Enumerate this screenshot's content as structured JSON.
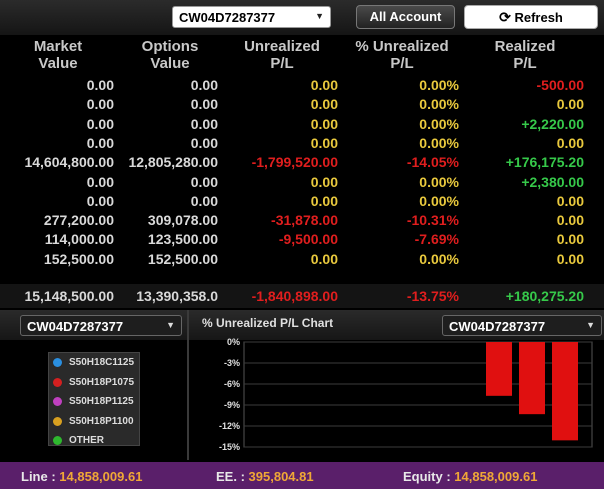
{
  "account_select": {
    "value": "CW04D7287377"
  },
  "buttons": {
    "all_account": "All Account",
    "refresh": "Refresh"
  },
  "columns": [
    {
      "line1": "Market",
      "line2": "Value"
    },
    {
      "line1": "Options",
      "line2": "Value"
    },
    {
      "line1": "Unrealized",
      "line2": "P/L"
    },
    {
      "line1": "% Unrealized",
      "line2": "P/L"
    },
    {
      "line1": "Realized",
      "line2": "P/L"
    }
  ],
  "rows": [
    {
      "market": "0.00",
      "options": "0.00",
      "unrealized": "0.00",
      "pct": "0.00%",
      "realized": "-500.00"
    },
    {
      "market": "0.00",
      "options": "0.00",
      "unrealized": "0.00",
      "pct": "0.00%",
      "realized": "0.00"
    },
    {
      "market": "0.00",
      "options": "0.00",
      "unrealized": "0.00",
      "pct": "0.00%",
      "realized": "+2,220.00"
    },
    {
      "market": "0.00",
      "options": "0.00",
      "unrealized": "0.00",
      "pct": "0.00%",
      "realized": "0.00"
    },
    {
      "market": "14,604,800.00",
      "options": "12,805,280.00",
      "unrealized": "-1,799,520.00",
      "pct": "-14.05%",
      "realized": "+176,175.20"
    },
    {
      "market": "0.00",
      "options": "0.00",
      "unrealized": "0.00",
      "pct": "0.00%",
      "realized": "+2,380.00"
    },
    {
      "market": "0.00",
      "options": "0.00",
      "unrealized": "0.00",
      "pct": "0.00%",
      "realized": "0.00"
    },
    {
      "market": "277,200.00",
      "options": "309,078.00",
      "unrealized": "-31,878.00",
      "pct": "-10.31%",
      "realized": "0.00"
    },
    {
      "market": "114,000.00",
      "options": "123,500.00",
      "unrealized": "-9,500.00",
      "pct": "-7.69%",
      "realized": "0.00"
    },
    {
      "market": "152,500.00",
      "options": "152,500.00",
      "unrealized": "0.00",
      "pct": "0.00%",
      "realized": "0.00"
    }
  ],
  "totals": {
    "market": "15,148,500.00",
    "options": "13,390,358.0",
    "unrealized": "-1,840,898.00",
    "pct": "-13.75%",
    "realized": "+180,275.20"
  },
  "lower_left_select": {
    "value": "CW04D7287377"
  },
  "chart_select": {
    "value": "CW04D7287377"
  },
  "chart_title": "% Unrealized P/L Chart",
  "legend": [
    {
      "label": "S50H18C1125",
      "color": "#2a8fe0"
    },
    {
      "label": "S50H18P1075",
      "color": "#d42020"
    },
    {
      "label": "S50H18P1125",
      "color": "#c040c0"
    },
    {
      "label": "S50H18P1100",
      "color": "#d8a020"
    },
    {
      "label": "OTHER",
      "color": "#2eb82e"
    }
  ],
  "chart_data": {
    "type": "bar",
    "y_ticks": [
      "0%",
      "-3%",
      "-6%",
      "-9%",
      "-12%",
      "-15%"
    ],
    "ylim": [
      -15,
      0
    ],
    "values": [
      -7.69,
      -10.31,
      -14.05
    ],
    "bar_color": "#e01010",
    "grid": true
  },
  "status": {
    "line_label": "Line :",
    "line_value": "14,858,009.61",
    "ee_label": "EE. :",
    "ee_value": "395,804.81",
    "equity_label": "Equity :",
    "equity_value": "14,858,009.61"
  }
}
